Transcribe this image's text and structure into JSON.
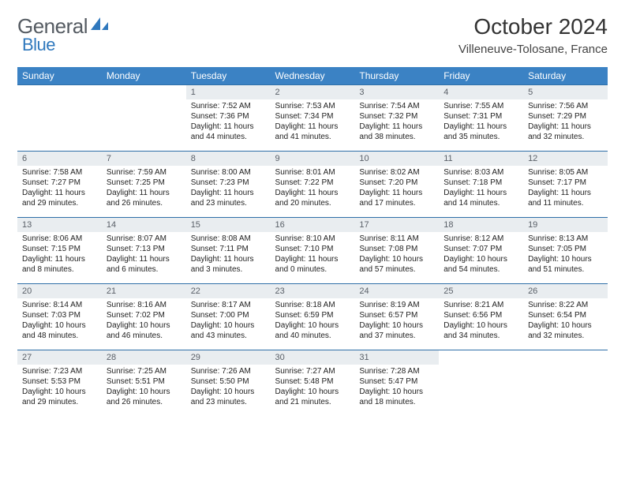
{
  "brand": {
    "general": "General",
    "blue": "Blue"
  },
  "title": "October 2024",
  "location": "Villeneuve-Tolosane, France",
  "colors": {
    "header_bg": "#3b82c4",
    "row_border": "#2f6fa8",
    "daynum_bg": "#e9edf0",
    "brand_blue": "#2f78bd",
    "brand_gray": "#555b62"
  },
  "weekdays": [
    "Sunday",
    "Monday",
    "Tuesday",
    "Wednesday",
    "Thursday",
    "Friday",
    "Saturday"
  ],
  "weeks": [
    [
      null,
      null,
      {
        "n": "1",
        "sr": "7:52 AM",
        "ss": "7:36 PM",
        "dl": "11 hours and 44 minutes."
      },
      {
        "n": "2",
        "sr": "7:53 AM",
        "ss": "7:34 PM",
        "dl": "11 hours and 41 minutes."
      },
      {
        "n": "3",
        "sr": "7:54 AM",
        "ss": "7:32 PM",
        "dl": "11 hours and 38 minutes."
      },
      {
        "n": "4",
        "sr": "7:55 AM",
        "ss": "7:31 PM",
        "dl": "11 hours and 35 minutes."
      },
      {
        "n": "5",
        "sr": "7:56 AM",
        "ss": "7:29 PM",
        "dl": "11 hours and 32 minutes."
      }
    ],
    [
      {
        "n": "6",
        "sr": "7:58 AM",
        "ss": "7:27 PM",
        "dl": "11 hours and 29 minutes."
      },
      {
        "n": "7",
        "sr": "7:59 AM",
        "ss": "7:25 PM",
        "dl": "11 hours and 26 minutes."
      },
      {
        "n": "8",
        "sr": "8:00 AM",
        "ss": "7:23 PM",
        "dl": "11 hours and 23 minutes."
      },
      {
        "n": "9",
        "sr": "8:01 AM",
        "ss": "7:22 PM",
        "dl": "11 hours and 20 minutes."
      },
      {
        "n": "10",
        "sr": "8:02 AM",
        "ss": "7:20 PM",
        "dl": "11 hours and 17 minutes."
      },
      {
        "n": "11",
        "sr": "8:03 AM",
        "ss": "7:18 PM",
        "dl": "11 hours and 14 minutes."
      },
      {
        "n": "12",
        "sr": "8:05 AM",
        "ss": "7:17 PM",
        "dl": "11 hours and 11 minutes."
      }
    ],
    [
      {
        "n": "13",
        "sr": "8:06 AM",
        "ss": "7:15 PM",
        "dl": "11 hours and 8 minutes."
      },
      {
        "n": "14",
        "sr": "8:07 AM",
        "ss": "7:13 PM",
        "dl": "11 hours and 6 minutes."
      },
      {
        "n": "15",
        "sr": "8:08 AM",
        "ss": "7:11 PM",
        "dl": "11 hours and 3 minutes."
      },
      {
        "n": "16",
        "sr": "8:10 AM",
        "ss": "7:10 PM",
        "dl": "11 hours and 0 minutes."
      },
      {
        "n": "17",
        "sr": "8:11 AM",
        "ss": "7:08 PM",
        "dl": "10 hours and 57 minutes."
      },
      {
        "n": "18",
        "sr": "8:12 AM",
        "ss": "7:07 PM",
        "dl": "10 hours and 54 minutes."
      },
      {
        "n": "19",
        "sr": "8:13 AM",
        "ss": "7:05 PM",
        "dl": "10 hours and 51 minutes."
      }
    ],
    [
      {
        "n": "20",
        "sr": "8:14 AM",
        "ss": "7:03 PM",
        "dl": "10 hours and 48 minutes."
      },
      {
        "n": "21",
        "sr": "8:16 AM",
        "ss": "7:02 PM",
        "dl": "10 hours and 46 minutes."
      },
      {
        "n": "22",
        "sr": "8:17 AM",
        "ss": "7:00 PM",
        "dl": "10 hours and 43 minutes."
      },
      {
        "n": "23",
        "sr": "8:18 AM",
        "ss": "6:59 PM",
        "dl": "10 hours and 40 minutes."
      },
      {
        "n": "24",
        "sr": "8:19 AM",
        "ss": "6:57 PM",
        "dl": "10 hours and 37 minutes."
      },
      {
        "n": "25",
        "sr": "8:21 AM",
        "ss": "6:56 PM",
        "dl": "10 hours and 34 minutes."
      },
      {
        "n": "26",
        "sr": "8:22 AM",
        "ss": "6:54 PM",
        "dl": "10 hours and 32 minutes."
      }
    ],
    [
      {
        "n": "27",
        "sr": "7:23 AM",
        "ss": "5:53 PM",
        "dl": "10 hours and 29 minutes."
      },
      {
        "n": "28",
        "sr": "7:25 AM",
        "ss": "5:51 PM",
        "dl": "10 hours and 26 minutes."
      },
      {
        "n": "29",
        "sr": "7:26 AM",
        "ss": "5:50 PM",
        "dl": "10 hours and 23 minutes."
      },
      {
        "n": "30",
        "sr": "7:27 AM",
        "ss": "5:48 PM",
        "dl": "10 hours and 21 minutes."
      },
      {
        "n": "31",
        "sr": "7:28 AM",
        "ss": "5:47 PM",
        "dl": "10 hours and 18 minutes."
      },
      null,
      null
    ]
  ],
  "labels": {
    "sunrise": "Sunrise: ",
    "sunset": "Sunset: ",
    "daylight": "Daylight: "
  }
}
